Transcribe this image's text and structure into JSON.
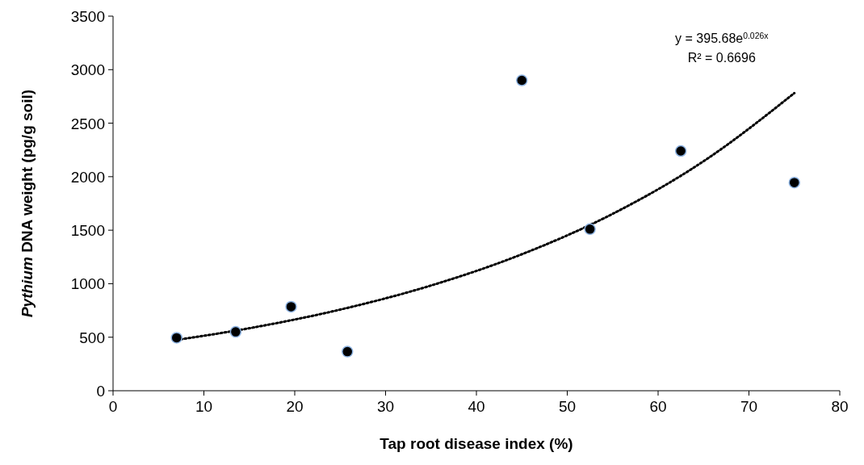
{
  "chart_data": {
    "type": "scatter",
    "xlabel": "Tap root disease index (%)",
    "ylabel": "Pythium DNA weight (pg/g soil)",
    "xlim": [
      0,
      80
    ],
    "xticks": [
      0,
      10,
      20,
      30,
      40,
      50,
      60,
      70,
      80
    ],
    "ylim": [
      0,
      3500
    ],
    "yticks": [
      0,
      500,
      1000,
      1500,
      2000,
      2500,
      3000,
      3500
    ],
    "grid": false,
    "series": [
      {
        "color": "#000000",
        "marker": "circle",
        "x": [
          7,
          13.5,
          19.6,
          25.8,
          45,
          52.5,
          62.5,
          75
        ],
        "values": [
          495,
          550,
          785,
          365,
          2900,
          1510,
          2240,
          1945
        ]
      },
      {
        "type": "line",
        "color": "#000000",
        "line_style": "dotted",
        "marker": "none",
        "x": [
          7,
          15,
          25,
          35,
          45,
          55,
          65,
          75
        ],
        "values": [
          475,
          584,
          758,
          983,
          1275,
          1653,
          2144,
          2781
        ]
      }
    ],
    "annotations": [
      "y = 395.68e$^{0.026x}$",
      "R² = 0.6696"
    ]
  }
}
